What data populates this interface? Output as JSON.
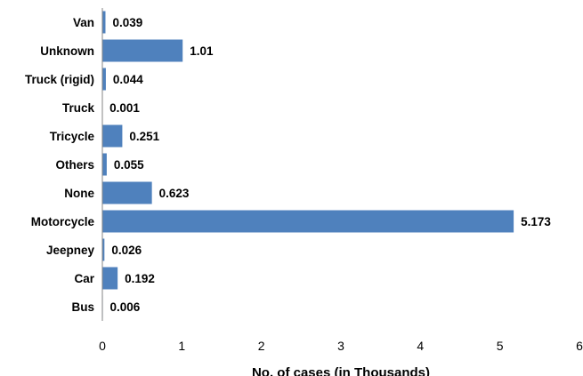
{
  "chart_data": {
    "type": "bar",
    "orientation": "horizontal",
    "categories": [
      "Van",
      "Unknown",
      "Truck (rigid)",
      "Truck",
      "Tricycle",
      "Others",
      "None",
      "Motorcycle",
      "Jeepney",
      "Car",
      "Bus"
    ],
    "values": [
      0.039,
      1.01,
      0.044,
      0.001,
      0.251,
      0.055,
      0.623,
      5.173,
      0.026,
      0.192,
      0.006
    ],
    "value_labels": [
      "0.039",
      "1.01",
      "0.044",
      "0.001",
      "0.251",
      "0.055",
      "0.623",
      "5.173",
      "0.026",
      "0.192",
      "0.006"
    ],
    "xlabel": "No. of cases (in Thousands)",
    "ylabel": "",
    "title": "",
    "xlim": [
      0,
      6
    ],
    "xticks": [
      "0",
      "1",
      "2",
      "3",
      "4",
      "5",
      "6"
    ],
    "grid": false,
    "legend": "none",
    "bar_color": "#4F81BD"
  }
}
